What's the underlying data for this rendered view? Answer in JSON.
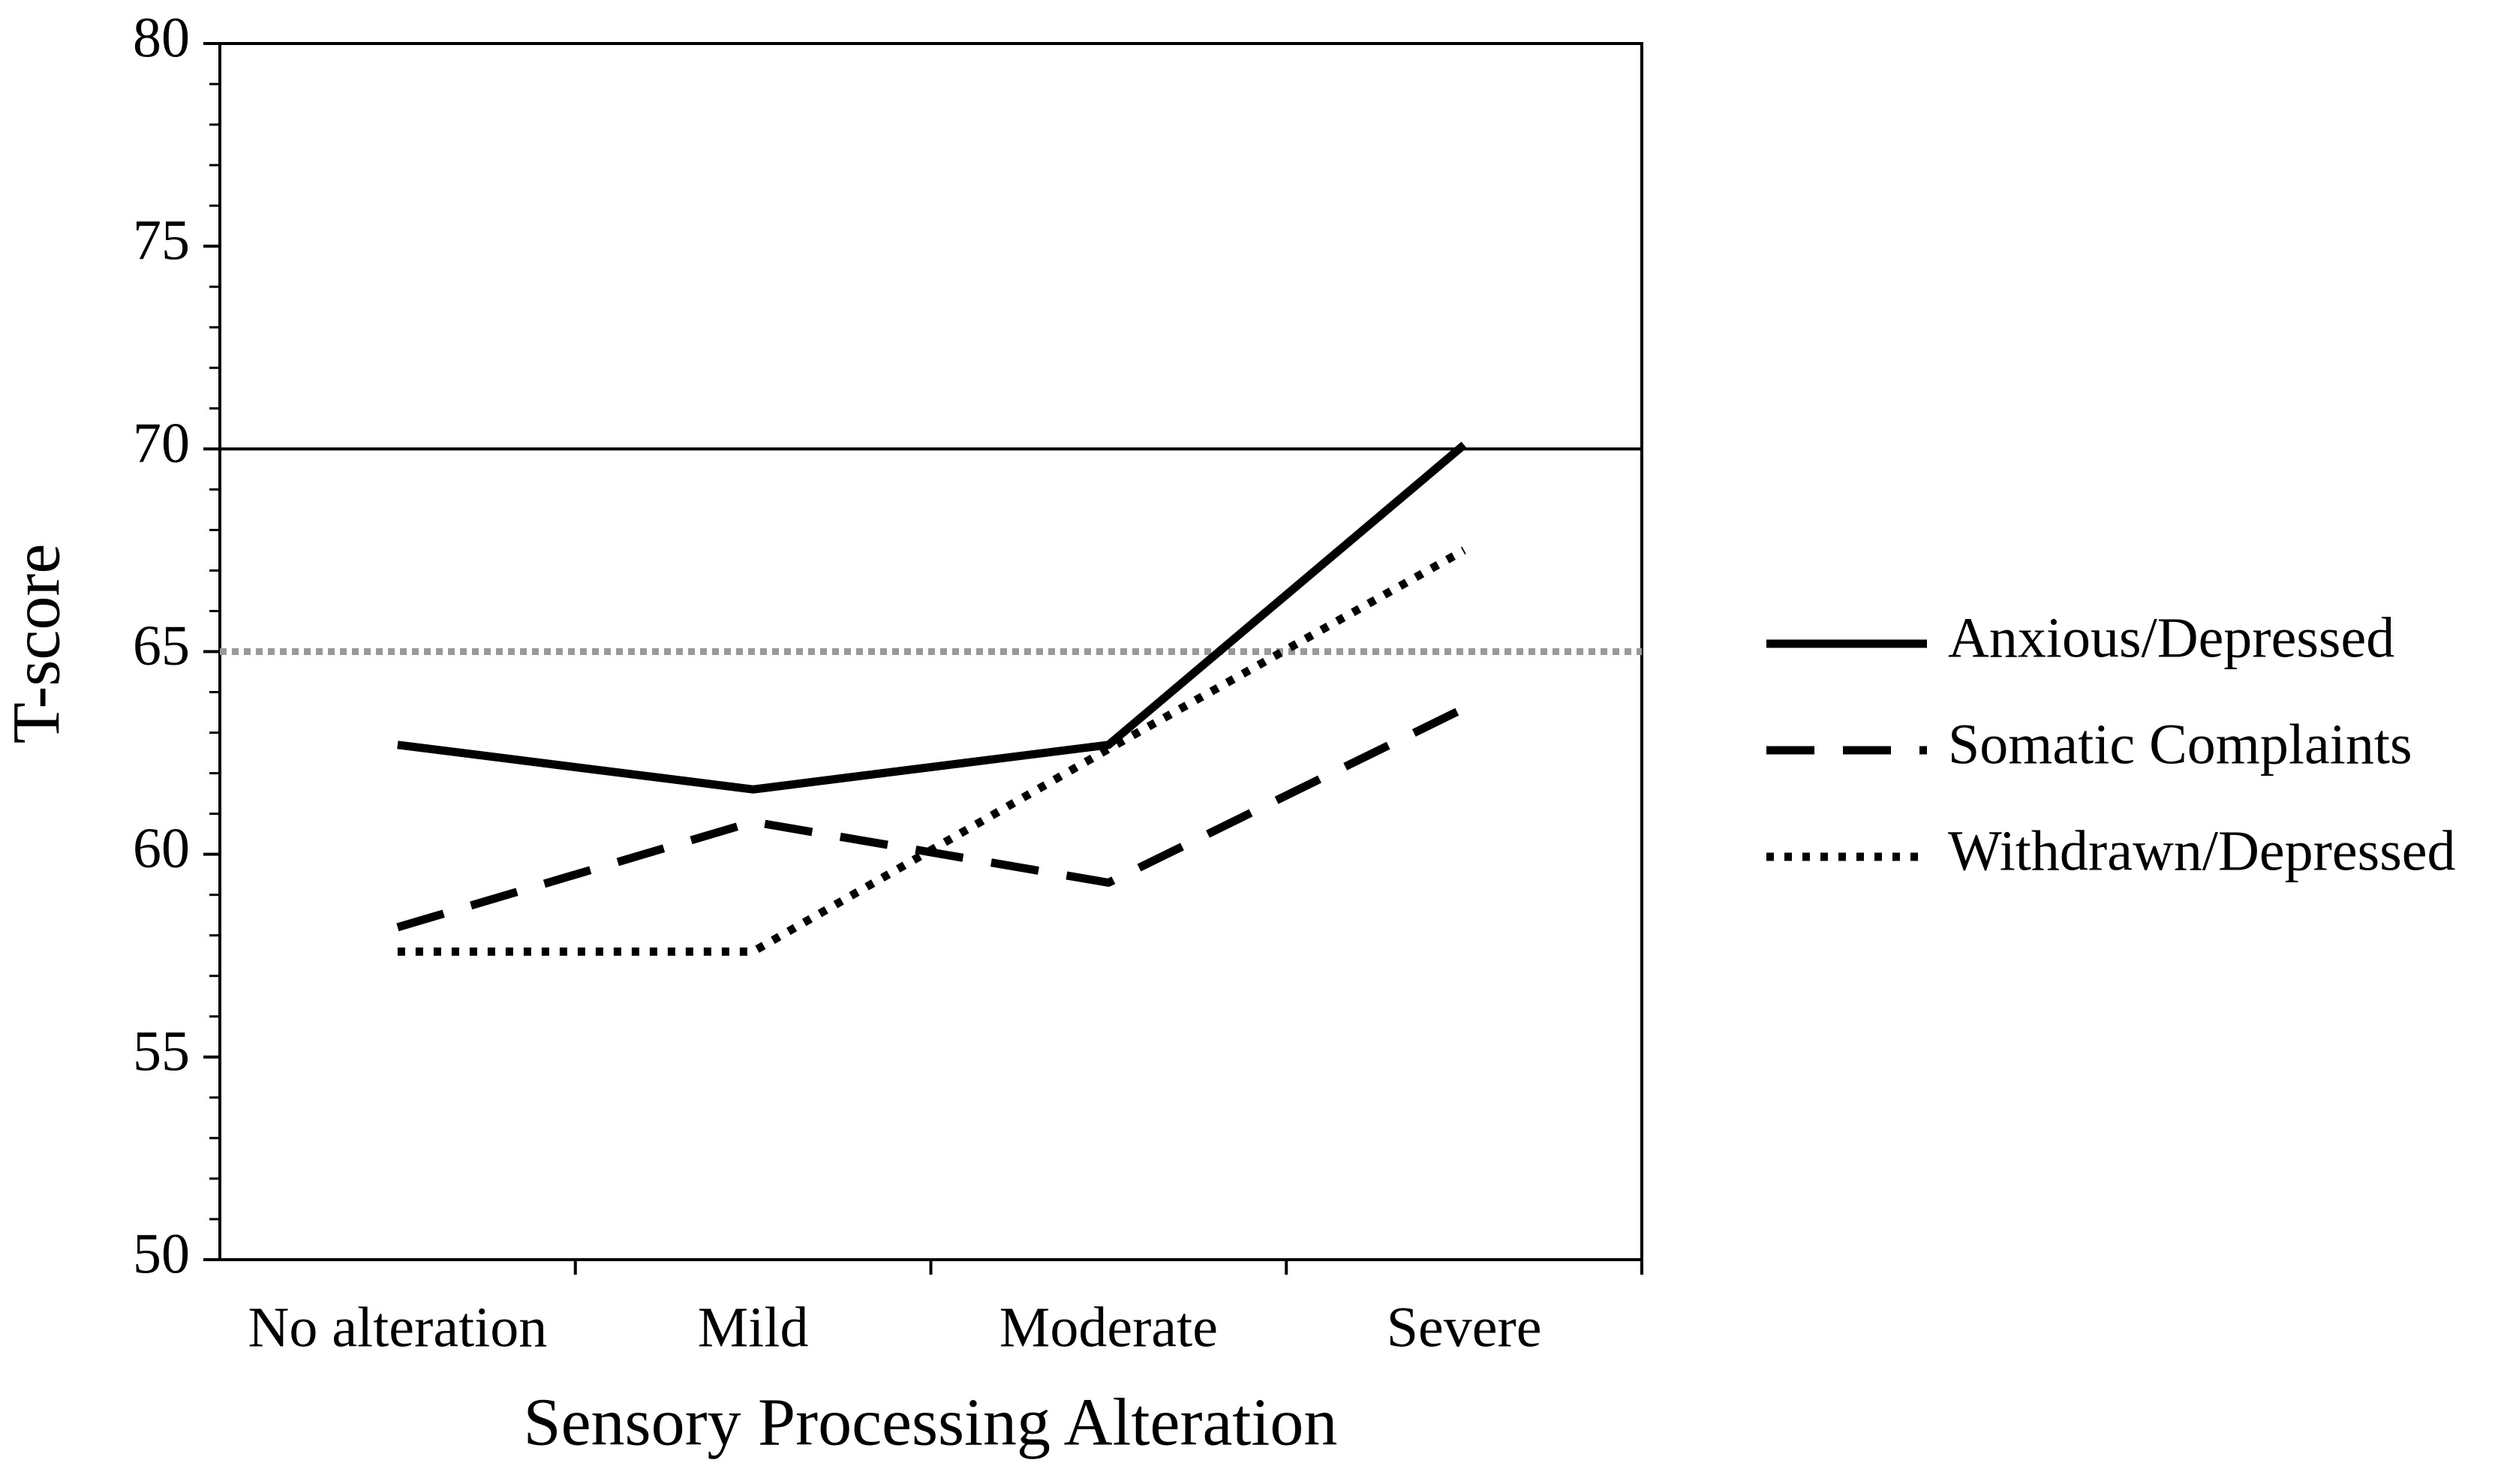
{
  "chart_data": {
    "type": "line",
    "x_label": "Sensory Processing Alteration",
    "y_label": "T-score",
    "categories": [
      "No alteration",
      "Mild",
      "Moderate",
      "Severe"
    ],
    "series": [
      {
        "name": "Anxious/Depressed",
        "color": "#000000",
        "style": "solid",
        "values": [
          62.7,
          61.6,
          62.7,
          70.1
        ]
      },
      {
        "name": "Somatic Complaints",
        "color": "#000000",
        "style": "dashed",
        "values": [
          58.2,
          60.8,
          59.3,
          63.6
        ]
      },
      {
        "name": "Withdrawn/Depressed",
        "color": "#000000",
        "style": "dotted",
        "values": [
          57.6,
          57.6,
          62.6,
          67.5
        ]
      }
    ],
    "reference_lines": [
      {
        "value": 70,
        "color": "#000000",
        "style": "solid"
      },
      {
        "value": 65,
        "color": "#999999",
        "style": "dotted"
      }
    ],
    "ylim": [
      50,
      80
    ],
    "yticks": [
      50,
      55,
      60,
      65,
      70,
      75,
      80
    ],
    "y_minor_ticks": [
      51,
      52,
      53,
      54,
      56,
      57,
      58,
      59,
      61,
      62,
      63,
      64,
      66,
      67,
      68,
      69,
      71,
      72,
      73,
      74,
      76,
      77,
      78,
      79
    ],
    "legend": "right"
  }
}
